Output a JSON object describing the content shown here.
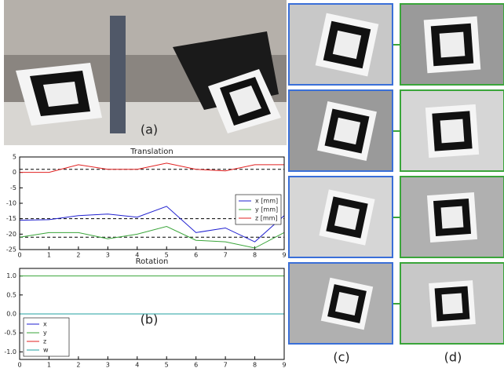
{
  "panel_labels": [
    "(a)",
    "(b)",
    "(c)",
    "(d)"
  ],
  "chart_data": [
    {
      "type": "line",
      "title": "Translation",
      "x": [
        0,
        1,
        2,
        3,
        4,
        5,
        6,
        7,
        8,
        9
      ],
      "xlim": [
        0,
        9
      ],
      "xticks": [
        0,
        1,
        2,
        3,
        4,
        5,
        6,
        7,
        8,
        9
      ],
      "ylim": [
        -25,
        5
      ],
      "yticks": [
        5,
        0,
        -5,
        -10,
        -15,
        -20,
        -25
      ],
      "reference_lines": [
        1,
        -15,
        -21
      ],
      "legend": "right",
      "series": [
        {
          "name": "x [mm]",
          "color": "#1f1fd0",
          "values": [
            -15.5,
            -15.3,
            -14,
            -13.5,
            -14.5,
            -11,
            -19.5,
            -18,
            -22.5,
            -14
          ]
        },
        {
          "name": "y [mm]",
          "color": "#3aa53a",
          "values": [
            -21,
            -19.5,
            -19.5,
            -21.5,
            -20,
            -17.5,
            -22,
            -22.5,
            -24.5,
            -19.5
          ]
        },
        {
          "name": "z [mm]",
          "color": "#e02020",
          "values": [
            0,
            0,
            2.5,
            1,
            1,
            3,
            1,
            0.5,
            2.5,
            2.5
          ]
        }
      ]
    },
    {
      "type": "line",
      "title": "Rotation",
      "x": [
        0,
        1,
        2,
        3,
        4,
        5,
        6,
        7,
        8,
        9
      ],
      "xlim": [
        0,
        9
      ],
      "xticks": [
        0,
        1,
        2,
        3,
        4,
        5,
        6,
        7,
        8,
        9
      ],
      "ylim": [
        -1.2,
        1.2
      ],
      "yticks": [
        {
          "value": 1,
          "label": "1.0"
        },
        0.5,
        {
          "value": 0,
          "label": "0.0"
        },
        -0.5,
        {
          "value": -1,
          "label": "-1.0"
        }
      ],
      "legend": "lower left",
      "series": [
        {
          "name": "x",
          "color": "#1f1fd0",
          "values": [
            0,
            0,
            0,
            0,
            0,
            0,
            0,
            0,
            0,
            0
          ]
        },
        {
          "name": "y",
          "color": "#3aa53a",
          "values": [
            1,
            1,
            1,
            1,
            1,
            1,
            1,
            1,
            1,
            1
          ]
        },
        {
          "name": "z",
          "color": "#e02020",
          "values": [
            0,
            0,
            0,
            0,
            0,
            0,
            0,
            0,
            0,
            0
          ]
        },
        {
          "name": "w",
          "color": "#20a0a0",
          "values": [
            0,
            0,
            0,
            0,
            0,
            0,
            0,
            0,
            0,
            0
          ]
        }
      ]
    }
  ]
}
